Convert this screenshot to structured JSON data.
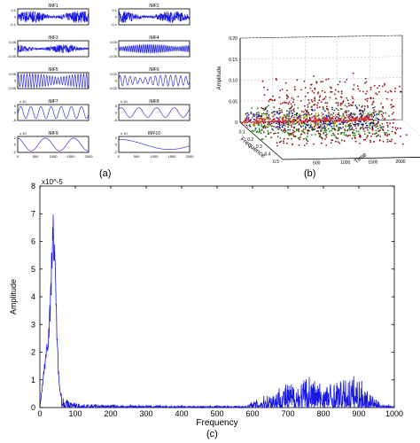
{
  "panels": {
    "a": {
      "caption": "(a)",
      "chart_data": {
        "type": "line",
        "x_range": [
          0,
          2000
        ],
        "x_ticks": [
          "0",
          "500",
          "1000",
          "1500",
          "2000"
        ],
        "imfs": [
          {
            "name": "IMF1",
            "ylim": [
              -0.1,
              0.1
            ],
            "ticks": [
              "0.1",
              "0",
              "-0.1"
            ],
            "exp": "",
            "amp": 0.8,
            "cycles": 300,
            "kind": "noise"
          },
          {
            "name": "IMF2",
            "ylim": [
              -0.1,
              0.1
            ],
            "ticks": [
              "0.1",
              "0",
              "-0.1"
            ],
            "exp": "",
            "amp": 0.75,
            "cycles": 220,
            "kind": "noise"
          },
          {
            "name": "IMF3",
            "ylim": [
              -0.05,
              0.05
            ],
            "ticks": [
              "0.05",
              "0",
              "-0.05"
            ],
            "exp": "",
            "amp": 0.55,
            "cycles": 150,
            "kind": "noise"
          },
          {
            "name": "IMF4",
            "ylim": [
              -0.05,
              0.05
            ],
            "ticks": [
              "0.05",
              "0",
              "-0.05"
            ],
            "exp": "",
            "amp": 0.6,
            "cycles": 45,
            "kind": "burst"
          },
          {
            "name": "IMF5",
            "ylim": [
              -0.05,
              0.05
            ],
            "ticks": [
              "0.05",
              "0",
              "-0.05"
            ],
            "exp": "",
            "amp": 0.9,
            "cycles": 25,
            "kind": "burst"
          },
          {
            "name": "IMF6",
            "ylim": [
              -0.02,
              0.02
            ],
            "ticks": [
              "0.02",
              "0",
              "-0.02"
            ],
            "exp": "",
            "amp": 0.7,
            "cycles": 14,
            "kind": "burst"
          },
          {
            "name": "IMF7",
            "ylim": [
              -5,
              5
            ],
            "ticks": [
              "5",
              "0",
              "-5"
            ],
            "exp": "x 10",
            "amp": 0.75,
            "cycles": 7,
            "kind": "wave"
          },
          {
            "name": "IMF8",
            "ylim": [
              -5,
              5
            ],
            "ticks": [
              "5",
              "0",
              "-5"
            ],
            "exp": "x 10",
            "amp": 0.6,
            "cycles": 4,
            "kind": "wave"
          },
          {
            "name": "IMF9",
            "ylim": [
              -2,
              2
            ],
            "ticks": [
              "2",
              "0",
              "-2"
            ],
            "exp": "x 10",
            "amp": 0.8,
            "cycles": 2.5,
            "kind": "wave"
          },
          {
            "name": "IMF10",
            "ylim": [
              -2,
              2
            ],
            "ticks": [
              "2",
              "0",
              "-2"
            ],
            "exp": "x 10",
            "amp": 0.7,
            "cycles": 0.5,
            "kind": "trend"
          }
        ]
      }
    },
    "b": {
      "caption": "(b)",
      "chart_data": {
        "type": "scatter",
        "zlabel": "Amplitude",
        "xlabel": "Frequence",
        "ylabel": "Time",
        "z_ticks": [
          "0.20",
          "0.15",
          "0.10",
          "0.05",
          "0"
        ],
        "freq_ticks": [
          "0",
          "0.1",
          "0.2",
          "0.3",
          "0.4",
          "0.5"
        ],
        "time_ticks": [
          "500",
          "1000",
          "1500",
          "2000",
          "2500"
        ],
        "series": [
          {
            "name": "",
            "color": "#8b1010",
            "freq": [
              0.2,
              0.45
            ],
            "amp": [
              0.02,
              0.15
            ],
            "count": 520
          },
          {
            "name": "",
            "color": "#1a7a1a",
            "freq": [
              0.1,
              0.25
            ],
            "amp": [
              0.0,
              0.06
            ],
            "count": 300
          },
          {
            "name": "",
            "color": "#1a1aa0",
            "freq": [
              0.03,
              0.12
            ],
            "amp": [
              0.0,
              0.04
            ],
            "count": 260
          },
          {
            "name": "",
            "color": "#b8a020",
            "freq": [
              0.02,
              0.08
            ],
            "amp": [
              0.0,
              0.03
            ],
            "count": 160
          },
          {
            "name": "",
            "color": "#e02030",
            "freq": [
              0.0,
              0.02
            ],
            "amp": [
              0.0,
              0.01
            ],
            "count": 200
          }
        ]
      }
    },
    "c": {
      "caption": "(c)",
      "chart_data": {
        "type": "line",
        "xlabel": "Frequency",
        "ylabel": "Amplitude",
        "y_exponent": "x10^-5",
        "xlim": [
          0,
          1000
        ],
        "ylim": [
          0,
          8
        ],
        "x_ticks": [
          0,
          100,
          200,
          300,
          400,
          500,
          600,
          700,
          800,
          900,
          1000
        ],
        "y_ticks": [
          0,
          1,
          2,
          3,
          4,
          5,
          6,
          7,
          8
        ],
        "peaks": [
          {
            "x": 18,
            "y": 2.3
          },
          {
            "x": 24,
            "y": 2.9
          },
          {
            "x": 30,
            "y": 4.2
          },
          {
            "x": 36,
            "y": 7.6
          },
          {
            "x": 40,
            "y": 6.5
          },
          {
            "x": 44,
            "y": 5.1
          },
          {
            "x": 48,
            "y": 3.2
          },
          {
            "x": 52,
            "y": 1.5
          },
          {
            "x": 58,
            "y": 0.6
          },
          {
            "x": 80,
            "y": 0.25
          },
          {
            "x": 120,
            "y": 0.12
          },
          {
            "x": 220,
            "y": 0.1
          },
          {
            "x": 300,
            "y": 0.08
          },
          {
            "x": 450,
            "y": 0.06
          },
          {
            "x": 580,
            "y": 0.07
          },
          {
            "x": 650,
            "y": 0.55
          },
          {
            "x": 680,
            "y": 0.85
          },
          {
            "x": 705,
            "y": 0.9
          },
          {
            "x": 730,
            "y": 0.95
          },
          {
            "x": 745,
            "y": 1.05
          },
          {
            "x": 760,
            "y": 1.3
          },
          {
            "x": 780,
            "y": 1.0
          },
          {
            "x": 800,
            "y": 0.9
          },
          {
            "x": 830,
            "y": 0.95
          },
          {
            "x": 860,
            "y": 1.0
          },
          {
            "x": 885,
            "y": 1.2
          },
          {
            "x": 905,
            "y": 1.05
          },
          {
            "x": 925,
            "y": 0.6
          },
          {
            "x": 960,
            "y": 0.15
          },
          {
            "x": 1000,
            "y": 0.05
          }
        ],
        "color": "#1818e0"
      }
    }
  }
}
